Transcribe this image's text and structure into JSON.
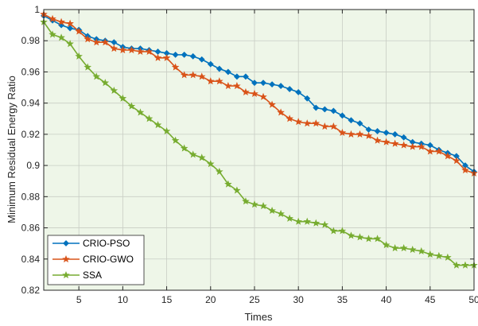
{
  "chart_data": {
    "type": "line",
    "title": "",
    "xlabel": "Times",
    "ylabel": "Minimum Residual Energy Ratio",
    "xlim": [
      1,
      50
    ],
    "ylim": [
      0.82,
      1.0
    ],
    "xticks": [
      5,
      10,
      15,
      20,
      25,
      30,
      35,
      40,
      45,
      50
    ],
    "yticks": [
      0.82,
      0.84,
      0.86,
      0.88,
      0.9,
      0.92,
      0.94,
      0.96,
      0.98,
      1
    ],
    "ytick_labels": [
      "0.82",
      "0.84",
      "0.86",
      "0.88",
      "0.9",
      "0.92",
      "0.94",
      "0.96",
      "0.98",
      "1"
    ],
    "grid": true,
    "legend_position": "bottom-left",
    "background": "#eef6e8",
    "x": [
      1,
      2,
      3,
      4,
      5,
      6,
      7,
      8,
      9,
      10,
      11,
      12,
      13,
      14,
      15,
      16,
      17,
      18,
      19,
      20,
      21,
      22,
      23,
      24,
      25,
      26,
      27,
      28,
      29,
      30,
      31,
      32,
      33,
      34,
      35,
      36,
      37,
      38,
      39,
      40,
      41,
      42,
      43,
      44,
      45,
      46,
      47,
      48,
      49,
      50
    ],
    "series": [
      {
        "name": "CRIO-PSO",
        "color": "#0072bd",
        "marker": "diamond",
        "values": [
          0.996,
          0.993,
          0.99,
          0.988,
          0.987,
          0.983,
          0.981,
          0.98,
          0.979,
          0.976,
          0.975,
          0.975,
          0.974,
          0.973,
          0.972,
          0.971,
          0.971,
          0.97,
          0.968,
          0.965,
          0.962,
          0.96,
          0.957,
          0.957,
          0.953,
          0.953,
          0.952,
          0.951,
          0.949,
          0.947,
          0.943,
          0.937,
          0.936,
          0.935,
          0.932,
          0.929,
          0.927,
          0.923,
          0.922,
          0.921,
          0.92,
          0.918,
          0.915,
          0.914,
          0.913,
          0.91,
          0.908,
          0.906,
          0.9,
          0.896
        ]
      },
      {
        "name": "CRIO-GWO",
        "color": "#d95319",
        "marker": "star",
        "values": [
          0.997,
          0.994,
          0.992,
          0.991,
          0.986,
          0.981,
          0.979,
          0.979,
          0.975,
          0.974,
          0.974,
          0.973,
          0.973,
          0.969,
          0.969,
          0.963,
          0.958,
          0.958,
          0.957,
          0.954,
          0.954,
          0.951,
          0.951,
          0.947,
          0.946,
          0.944,
          0.939,
          0.934,
          0.93,
          0.928,
          0.927,
          0.927,
          0.925,
          0.925,
          0.921,
          0.92,
          0.92,
          0.919,
          0.916,
          0.915,
          0.914,
          0.913,
          0.912,
          0.912,
          0.909,
          0.909,
          0.906,
          0.903,
          0.897,
          0.895
        ]
      },
      {
        "name": "SSA",
        "color": "#77ac30",
        "marker": "star",
        "values": [
          0.992,
          0.984,
          0.982,
          0.978,
          0.97,
          0.963,
          0.957,
          0.953,
          0.948,
          0.943,
          0.938,
          0.934,
          0.93,
          0.926,
          0.922,
          0.916,
          0.911,
          0.907,
          0.905,
          0.901,
          0.896,
          0.888,
          0.884,
          0.877,
          0.875,
          0.874,
          0.871,
          0.869,
          0.866,
          0.864,
          0.864,
          0.863,
          0.862,
          0.858,
          0.858,
          0.855,
          0.854,
          0.853,
          0.853,
          0.849,
          0.847,
          0.847,
          0.846,
          0.845,
          0.843,
          0.842,
          0.841,
          0.836,
          0.836,
          0.836
        ]
      }
    ]
  }
}
